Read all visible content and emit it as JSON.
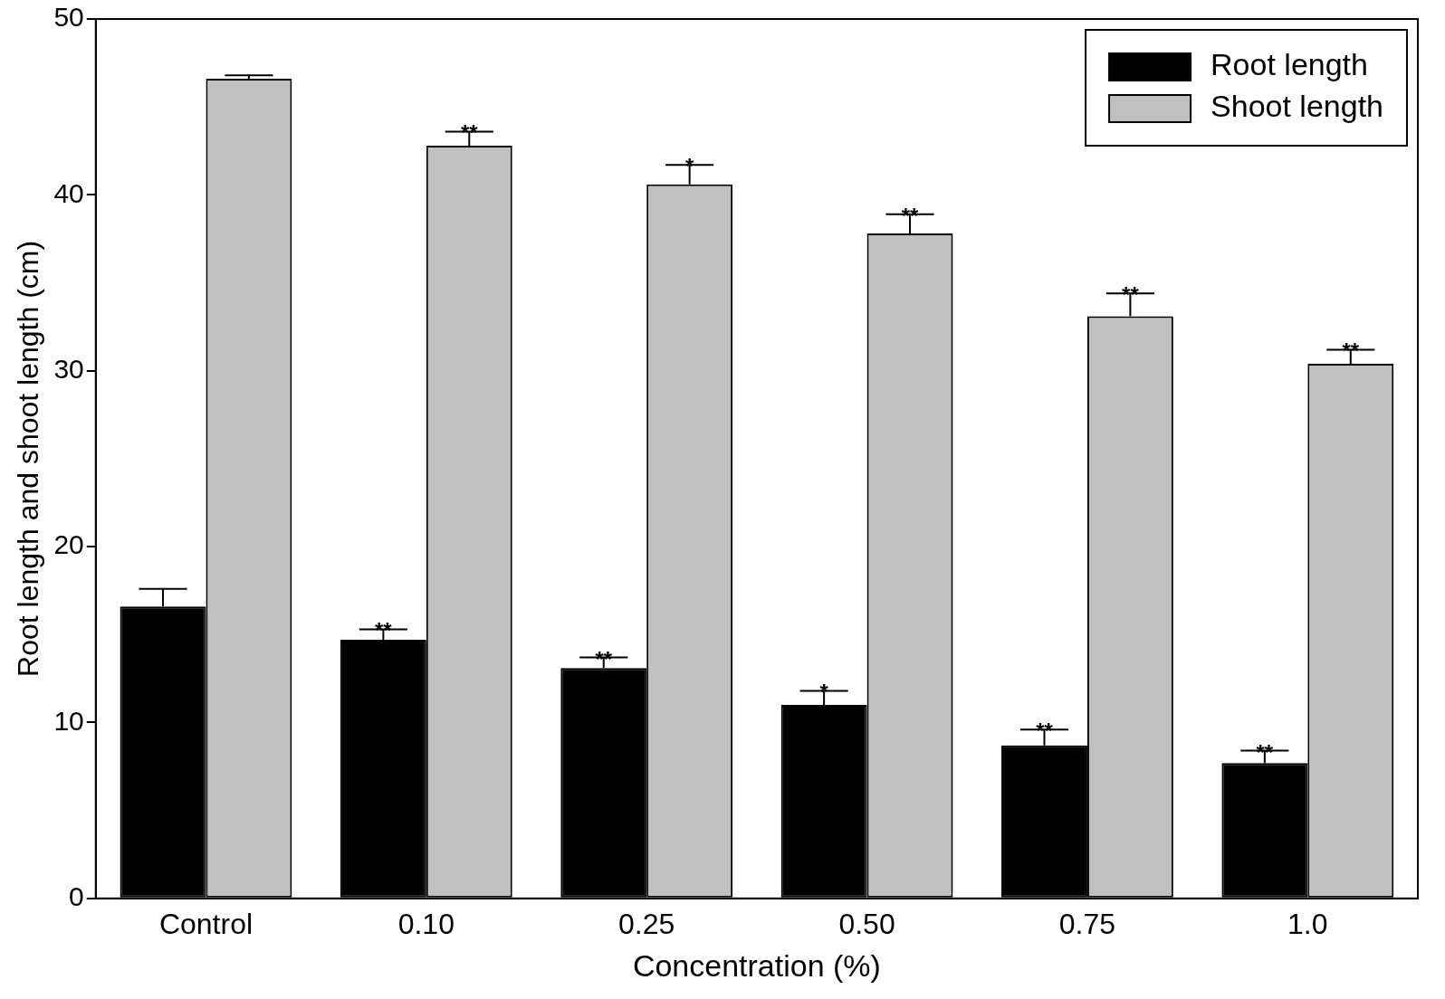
{
  "chart_data": {
    "type": "bar",
    "x_label": "Concentration (%)",
    "y_label": "Root length and shoot length (cm)",
    "categories": [
      "Control",
      "0.10",
      "0.25",
      "0.50",
      "0.75",
      "1.0"
    ],
    "series": [
      {
        "name": "Root length",
        "color": "#000000",
        "values": [
          16.6,
          14.7,
          13.1,
          11.0,
          8.7,
          7.7
        ],
        "errors": [
          1.0,
          0.6,
          0.6,
          0.8,
          0.9,
          0.7
        ],
        "annotations": [
          null,
          "**",
          "**",
          "*",
          "**",
          "**"
        ]
      },
      {
        "name": "Shoot length",
        "color": "#c0c0c0",
        "values": [
          46.6,
          42.8,
          40.6,
          37.8,
          33.1,
          30.4
        ],
        "errors": [
          0.2,
          0.8,
          1.1,
          1.1,
          1.3,
          0.8
        ],
        "annotations": [
          null,
          "**",
          "*",
          "**",
          "**",
          "**"
        ]
      }
    ],
    "ylim": [
      0,
      50
    ],
    "yticks": [
      0,
      10,
      20,
      30,
      40,
      50
    ],
    "grid": false,
    "legend": "upper right"
  }
}
